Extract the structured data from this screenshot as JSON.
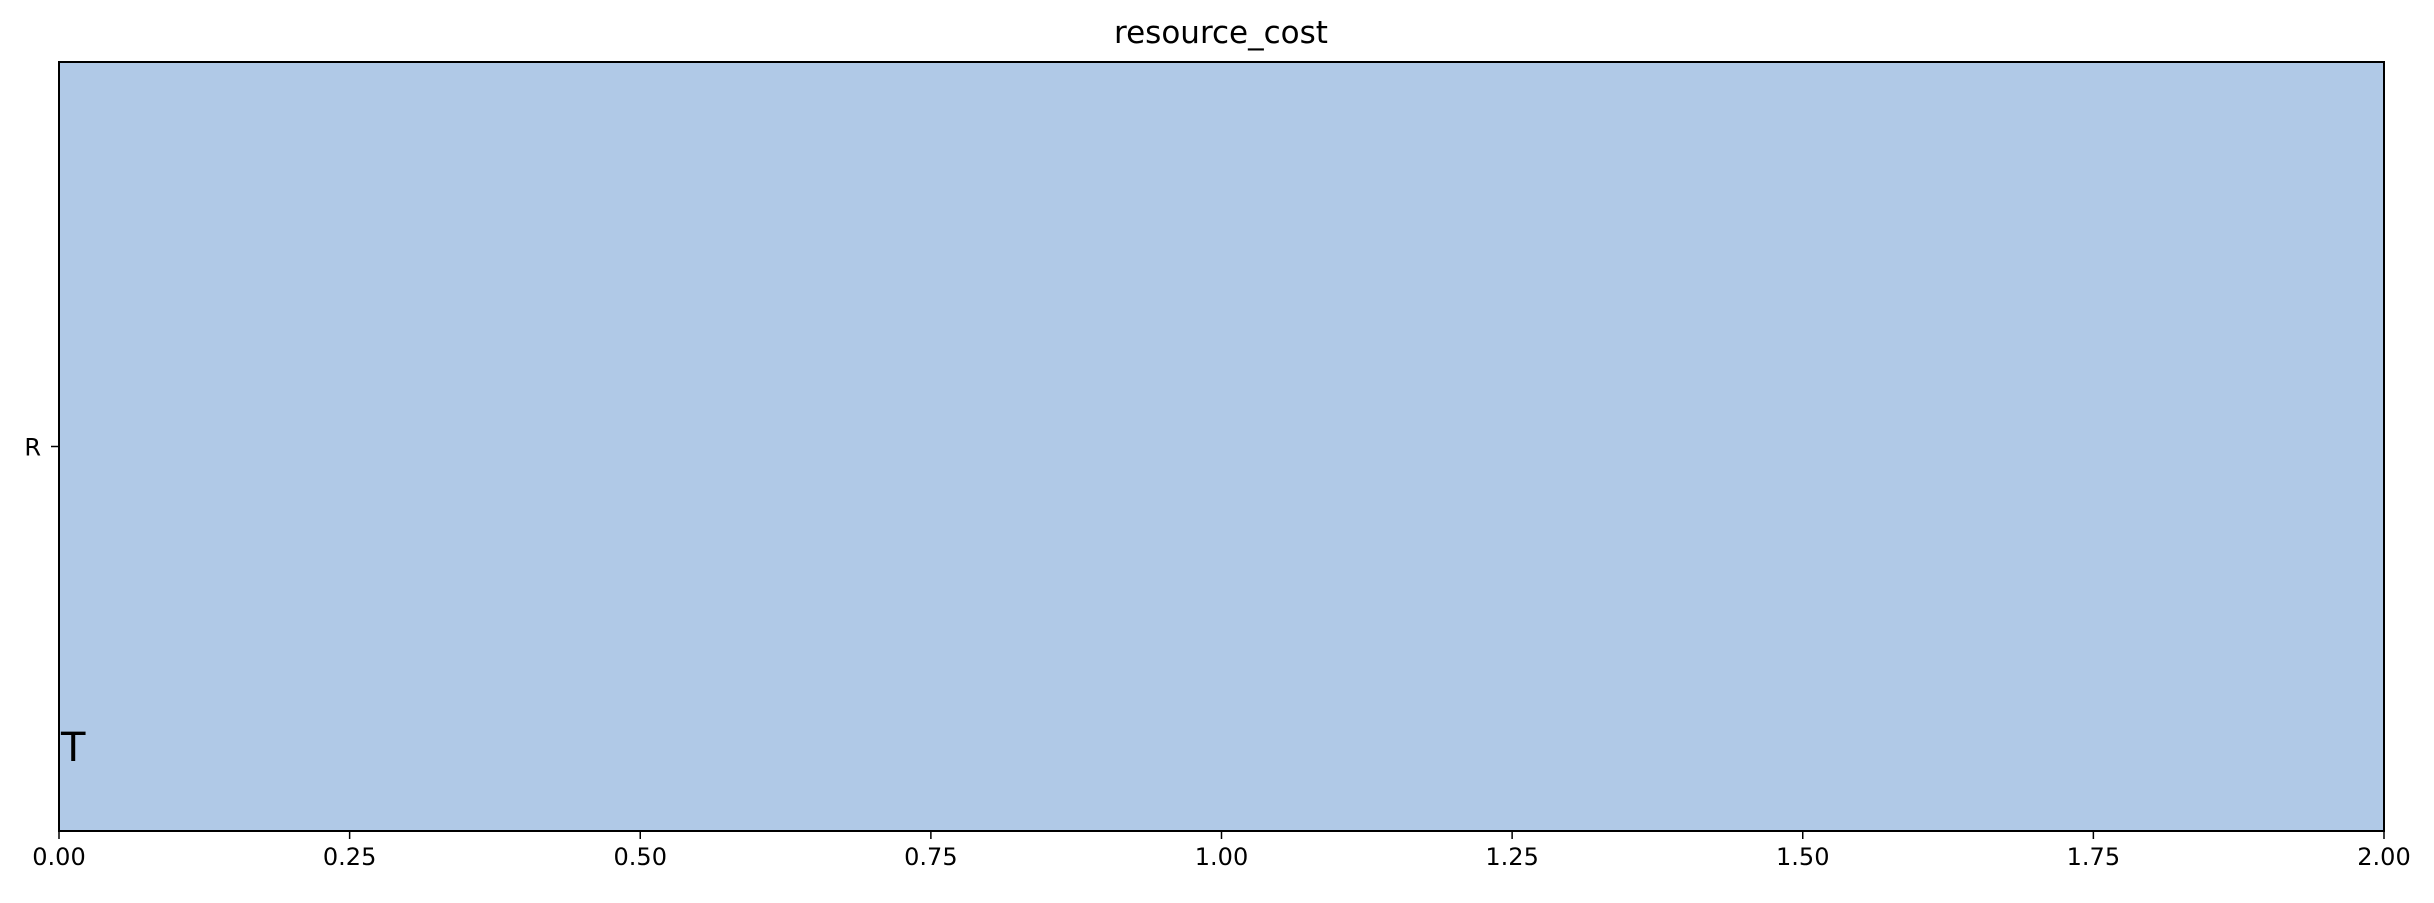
{
  "chart_data": {
    "type": "bar",
    "orientation": "horizontal",
    "title": "resource_cost",
    "xlabel": "",
    "ylabel": "",
    "xlim": [
      0,
      2
    ],
    "x_ticks": [
      "0.00",
      "0.25",
      "0.50",
      "0.75",
      "1.00",
      "1.25",
      "1.50",
      "1.75",
      "2.00"
    ],
    "categories": [
      "R"
    ],
    "series": [
      {
        "values": [
          2.0
        ],
        "color": "#b0c9e7"
      }
    ],
    "annotations": [
      {
        "text": "T",
        "x": 0.0
      }
    ],
    "grid": false,
    "legend": "none"
  }
}
